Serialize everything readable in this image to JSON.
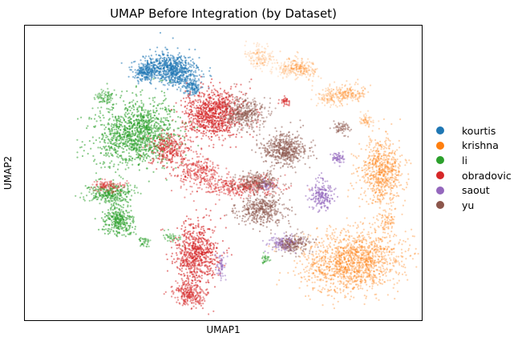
{
  "chart_data": {
    "type": "scatter",
    "title": "UMAP Before Integration (by Dataset)",
    "xlabel": "UMAP1",
    "ylabel": "UMAP2",
    "grid": false,
    "ticks": false,
    "legend_placement": "right",
    "series": [
      {
        "name": "kourtis",
        "color": "#1f77b4"
      },
      {
        "name": "krishna",
        "color": "#ff7f0e"
      },
      {
        "name": "li",
        "color": "#2ca02c"
      },
      {
        "name": "obradovic",
        "color": "#d62728"
      },
      {
        "name": "saout",
        "color": "#9467bd"
      },
      {
        "name": "yu",
        "color": "#8c564b"
      }
    ]
  }
}
